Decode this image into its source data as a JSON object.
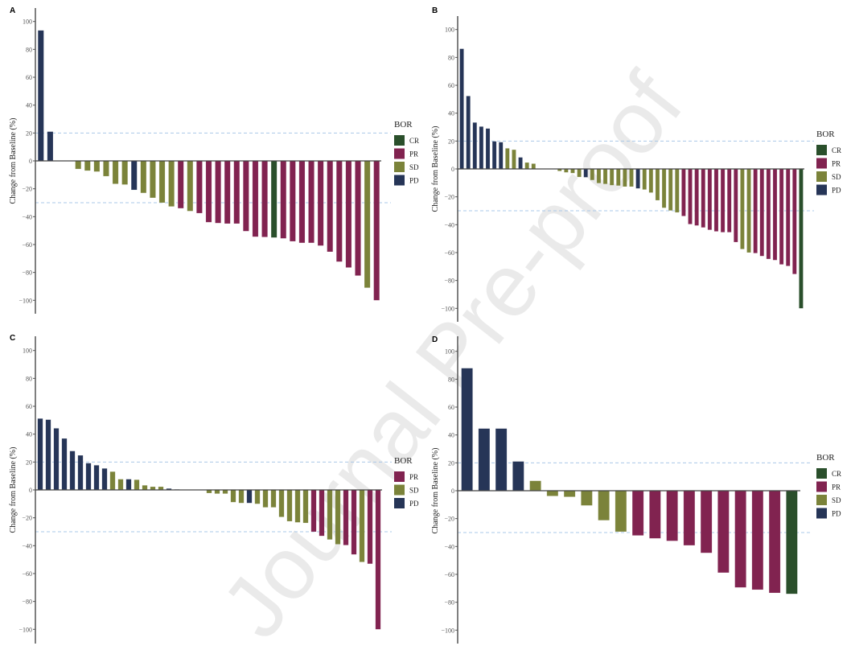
{
  "watermark": "Journal Pre-proof",
  "colors": {
    "CR": "#2a4f2b",
    "PR": "#812350",
    "SD": "#7b833a",
    "PD": "#263557",
    "threshold": "#a9c8e8"
  },
  "chart_data": [
    {
      "panel": "A",
      "type": "bar",
      "ylabel": "Change from Baseline (%)",
      "ylim": [
        -110,
        110
      ],
      "yticks": [
        -100,
        -80,
        -60,
        -40,
        -20,
        0,
        20,
        40,
        60,
        80,
        100
      ],
      "reference_lines": [
        20,
        -30
      ],
      "legend_title": "BOR",
      "legend": [
        "CR",
        "PR",
        "SD",
        "PD"
      ],
      "legend_placement": "right",
      "values": [
        93.6,
        21,
        0,
        0,
        -5.8,
        -7,
        -7.7,
        -11,
        -16.5,
        -17,
        -20.8,
        -23,
        -26.5,
        -30,
        -32.7,
        -34,
        -36,
        -37.5,
        -44,
        -44.6,
        -45,
        -45,
        -50.4,
        -54.4,
        -54.6,
        -55,
        -55.6,
        -57.7,
        -58.8,
        -58.8,
        -60.8,
        -65.2,
        -72.3,
        -76.5,
        -82.3,
        -91,
        -100
      ],
      "bor": [
        "PD",
        "PD",
        null,
        null,
        "SD",
        "SD",
        "SD",
        "SD",
        "SD",
        "SD",
        "PD",
        "SD",
        "SD",
        "SD",
        "SD",
        "PR",
        "SD",
        "PR",
        "PR",
        "PR",
        "PR",
        "PR",
        "PR",
        "PR",
        "PR",
        "CR",
        "PR",
        "PR",
        "PR",
        "PR",
        "PR",
        "PR",
        "PR",
        "PR",
        "PR",
        "SD",
        "PR"
      ]
    },
    {
      "panel": "B",
      "type": "bar",
      "ylabel": "Change from Baseline (%)",
      "ylim": [
        -110,
        110
      ],
      "yticks": [
        -100,
        -80,
        -60,
        -40,
        -20,
        0,
        20,
        40,
        60,
        80,
        100
      ],
      "reference_lines": [
        20,
        -30
      ],
      "legend_title": "BOR",
      "legend": [
        "CR",
        "PR",
        "SD",
        "PD"
      ],
      "legend_placement": "right",
      "values": [
        86.2,
        52.3,
        33.3,
        30.4,
        29,
        19.8,
        19.2,
        14.8,
        13.8,
        8.3,
        4.6,
        3.8,
        0,
        0,
        0,
        -1.5,
        -2.5,
        -3,
        -5.8,
        -6,
        -8,
        -10.2,
        -10.8,
        -11.7,
        -12,
        -12.7,
        -12.7,
        -14,
        -14.8,
        -17,
        -22.5,
        -27.9,
        -29.8,
        -31.2,
        -33.8,
        -39.6,
        -40.6,
        -42,
        -43.7,
        -44.8,
        -45.4,
        -45.4,
        -52.5,
        -57.5,
        -60,
        -60.4,
        -62.5,
        -64.6,
        -65.4,
        -68.5,
        -69.6,
        -75.4,
        -100
      ],
      "bor": [
        "PD",
        "PD",
        "PD",
        "PD",
        "PD",
        "PD",
        "PD",
        "SD",
        "SD",
        "PD",
        "SD",
        "SD",
        null,
        null,
        null,
        "SD",
        "SD",
        "SD",
        "SD",
        "PD",
        "SD",
        "SD",
        "SD",
        "SD",
        "SD",
        "SD",
        "SD",
        "PD",
        "SD",
        "SD",
        "SD",
        "SD",
        "SD",
        "SD",
        "PR",
        "PR",
        "PR",
        "PR",
        "PR",
        "PR",
        "PR",
        "PR",
        "PR",
        "SD",
        "SD",
        "PR",
        "PR",
        "PR",
        "PR",
        "PR",
        "PR",
        "PR",
        "CR"
      ]
    },
    {
      "panel": "C",
      "type": "bar",
      "ylabel": "Change from Baseline (%)",
      "ylim": [
        -110,
        110
      ],
      "yticks": [
        -100,
        -80,
        -60,
        -40,
        -20,
        0,
        20,
        40,
        60,
        80,
        100
      ],
      "reference_lines": [
        20,
        -30
      ],
      "legend_title": "BOR",
      "legend": [
        "PR",
        "SD",
        "PD"
      ],
      "legend_placement": "right",
      "values": [
        51.2,
        50.4,
        44.2,
        36.9,
        27.9,
        24.8,
        19.2,
        17.7,
        15.4,
        13.1,
        7.7,
        7.7,
        7.3,
        3.3,
        2.3,
        2.3,
        1,
        0.4,
        0,
        0,
        0,
        -2.3,
        -2.7,
        -2.7,
        -8.8,
        -9.4,
        -9.4,
        -10,
        -12.5,
        -12.5,
        -19.4,
        -22.5,
        -23.3,
        -23.7,
        -30,
        -33,
        -35.6,
        -39,
        -39.6,
        -46.3,
        -51.7,
        -53,
        -100
      ],
      "bor": [
        "PD",
        "PD",
        "PD",
        "PD",
        "PD",
        "PD",
        "PD",
        "PD",
        "PD",
        "SD",
        "SD",
        "PD",
        "SD",
        "SD",
        "SD",
        "SD",
        "PD",
        "PD",
        null,
        null,
        null,
        "SD",
        "SD",
        "SD",
        "SD",
        "SD",
        "PD",
        "SD",
        "SD",
        "SD",
        "SD",
        "SD",
        "SD",
        "SD",
        "PR",
        "PR",
        "SD",
        "SD",
        "PR",
        "PR",
        "SD",
        "PR",
        "PR"
      ]
    },
    {
      "panel": "D",
      "type": "bar",
      "ylabel": "Change from Baseline (%)",
      "ylim": [
        -110,
        110
      ],
      "yticks": [
        -100,
        -80,
        -60,
        -40,
        -20,
        0,
        20,
        40,
        60,
        80,
        100
      ],
      "reference_lines": [
        20,
        -30
      ],
      "legend_title": "BOR",
      "legend": [
        "CR",
        "PR",
        "SD",
        "PD"
      ],
      "legend_placement": "right",
      "values": [
        87.9,
        44.6,
        44.6,
        21,
        7.1,
        -3.8,
        -4.4,
        -10.6,
        -21.2,
        -29.4,
        -32.1,
        -34.2,
        -36,
        -39.2,
        -44.6,
        -58.8,
        -69.4,
        -71,
        -73.3,
        -74
      ],
      "bor": [
        "PD",
        "PD",
        "PD",
        "PD",
        "SD",
        "SD",
        "SD",
        "SD",
        "SD",
        "SD",
        "PR",
        "PR",
        "PR",
        "PR",
        "PR",
        "PR",
        "PR",
        "PR",
        "PR",
        "CR"
      ]
    }
  ]
}
